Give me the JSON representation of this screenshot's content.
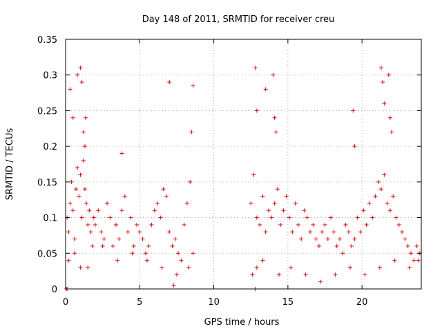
{
  "chart_data": {
    "type": "scatter",
    "title": "Day 148 of 2011, SRMTID for receiver creu",
    "xlabel": "GPS time / hours",
    "ylabel": "SRMTID / TECUs",
    "xlim": [
      0,
      24
    ],
    "ylim": [
      0,
      0.35
    ],
    "xticks": [
      0,
      5,
      10,
      15,
      20
    ],
    "xtick_labels": [
      "0",
      "5",
      "10",
      "15",
      "20"
    ],
    "yticks": [
      0,
      0.05,
      0.1,
      0.15,
      0.2,
      0.25,
      0.3,
      0.35
    ],
    "ytick_labels": [
      "0",
      "0.05",
      "0.1",
      "0.15",
      "0.2",
      "0.25",
      "0.3",
      "0.35"
    ],
    "grid": true,
    "marker": "+",
    "color": "#ff0000",
    "series": [
      {
        "name": "SRMTID",
        "x": [
          0.1,
          0.2,
          0.3,
          0.4,
          0.5,
          0.6,
          0.7,
          0.8,
          0.9,
          1.0,
          1.1,
          1.2,
          1.3,
          1.4,
          1.5,
          1.6,
          1.7,
          1.8,
          1.9,
          2.0,
          2.2,
          2.4,
          2.6,
          2.8,
          3.0,
          3.2,
          3.4,
          3.6,
          3.8,
          4.0,
          4.2,
          4.4,
          4.6,
          4.8,
          5.0,
          5.2,
          5.4,
          5.6,
          5.8,
          6.0,
          6.2,
          6.4,
          6.6,
          6.8,
          7.0,
          7.2,
          7.4,
          7.6,
          7.8,
          8.0,
          8.2,
          8.4,
          8.6,
          0.3,
          0.5,
          0.8,
          1.0,
          1.1,
          1.2,
          1.3,
          1.35,
          3.8,
          7.0,
          8.5,
          8.6,
          0.2,
          0.6,
          1.0,
          1.5,
          2.5,
          3.5,
          4.5,
          5.5,
          6.5,
          7.5,
          8.3,
          12.5,
          12.7,
          12.9,
          13.1,
          13.3,
          13.5,
          13.7,
          13.9,
          14.1,
          14.3,
          14.5,
          14.7,
          14.9,
          15.1,
          15.3,
          15.5,
          15.7,
          15.9,
          16.1,
          16.3,
          16.5,
          16.7,
          16.9,
          17.1,
          17.3,
          17.5,
          17.7,
          17.9,
          18.1,
          18.3,
          18.5,
          18.7,
          18.9,
          19.1,
          19.3,
          19.5,
          19.7,
          19.9,
          20.1,
          20.3,
          20.5,
          20.7,
          20.9,
          21.1,
          21.3,
          21.5,
          21.7,
          21.9,
          22.1,
          22.3,
          22.5,
          22.7,
          22.9,
          23.1,
          23.3,
          23.5,
          23.7,
          23.9,
          12.8,
          12.9,
          13.5,
          14.0,
          14.1,
          14.2,
          19.4,
          19.5,
          21.3,
          21.4,
          21.5,
          21.8,
          21.9,
          22.0,
          12.6,
          12.9,
          13.3,
          14.4,
          15.2,
          16.2,
          17.2,
          18.2,
          19.2,
          20.2,
          21.2,
          22.2,
          23.2,
          23.8,
          0.05,
          0.1,
          7.3,
          12.8
        ],
        "y": [
          0.1,
          0.08,
          0.12,
          0.15,
          0.11,
          0.07,
          0.14,
          0.17,
          0.13,
          0.16,
          0.1,
          0.18,
          0.14,
          0.12,
          0.09,
          0.11,
          0.08,
          0.06,
          0.1,
          0.09,
          0.11,
          0.08,
          0.07,
          0.12,
          0.1,
          0.06,
          0.09,
          0.07,
          0.11,
          0.13,
          0.08,
          0.1,
          0.06,
          0.09,
          0.08,
          0.07,
          0.05,
          0.06,
          0.09,
          0.11,
          0.12,
          0.1,
          0.14,
          0.13,
          0.08,
          0.06,
          0.07,
          0.05,
          0.04,
          0.09,
          0.12,
          0.15,
          0.05,
          0.28,
          0.24,
          0.3,
          0.31,
          0.29,
          0.22,
          0.2,
          0.24,
          0.19,
          0.29,
          0.22,
          0.285,
          0.04,
          0.05,
          0.03,
          0.03,
          0.06,
          0.04,
          0.05,
          0.04,
          0.03,
          0.02,
          0.03,
          0.12,
          0.16,
          0.1,
          0.09,
          0.13,
          0.08,
          0.11,
          0.1,
          0.12,
          0.14,
          0.09,
          0.11,
          0.13,
          0.1,
          0.08,
          0.12,
          0.09,
          0.07,
          0.11,
          0.1,
          0.08,
          0.09,
          0.07,
          0.06,
          0.08,
          0.09,
          0.07,
          0.1,
          0.08,
          0.06,
          0.07,
          0.05,
          0.09,
          0.08,
          0.06,
          0.07,
          0.1,
          0.08,
          0.11,
          0.09,
          0.12,
          0.1,
          0.13,
          0.15,
          0.14,
          0.16,
          0.12,
          0.11,
          0.13,
          0.1,
          0.09,
          0.08,
          0.07,
          0.06,
          0.05,
          0.04,
          0.06,
          0.05,
          0.31,
          0.25,
          0.28,
          0.3,
          0.24,
          0.22,
          0.25,
          0.2,
          0.31,
          0.29,
          0.26,
          0.3,
          0.24,
          0.22,
          0.02,
          0.03,
          0.04,
          0.02,
          0.03,
          0.02,
          0.01,
          0.02,
          0.03,
          0.02,
          0.03,
          0.04,
          0.03,
          0.04,
          0.0,
          0.0,
          0.005,
          0.0
        ]
      }
    ]
  }
}
